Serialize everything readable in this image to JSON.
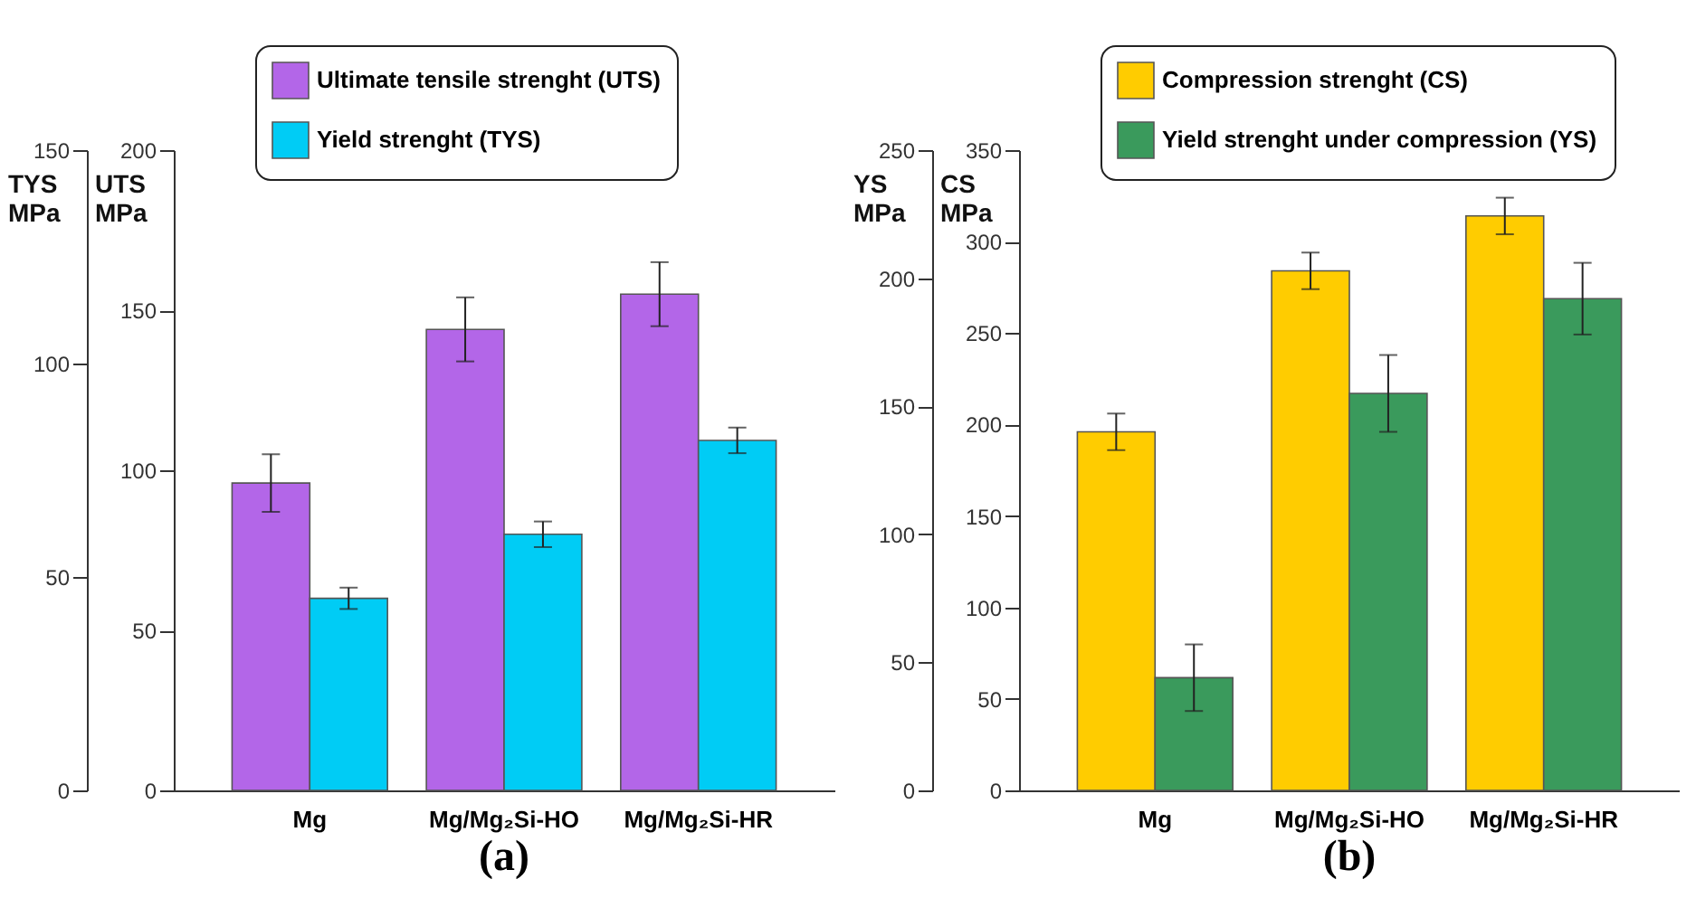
{
  "chart_data": [
    {
      "type": "bar",
      "categories": [
        "Mg",
        "Mg/Mg₂Si-HO",
        "Mg/Mg₂Si-HR"
      ],
      "ylabel": "UTS MPa",
      "y2label": "TYS MPa",
      "ylim": [
        0,
        200
      ],
      "yticks": [
        0,
        50,
        100,
        150,
        200
      ],
      "y2lim": [
        0,
        150
      ],
      "y2ticks": [
        0,
        50,
        100,
        150
      ],
      "legend": "top right",
      "annotations": [
        "(a)"
      ],
      "series": [
        {
          "name": "Ultimate tensile strenght (UTS)",
          "color": "#b366e8",
          "values": [
            96,
            144,
            155
          ],
          "errors": [
            9,
            10,
            10
          ]
        },
        {
          "name": "Yield strenght (TYS)",
          "color": "#00ccf5",
          "values": [
            45,
            60,
            82
          ],
          "errors": [
            2.5,
            3,
            3
          ],
          "axis": "y2"
        }
      ]
    },
    {
      "type": "bar",
      "categories": [
        "Mg",
        "Mg/Mg₂Si-HO",
        "Mg/Mg₂Si-HR"
      ],
      "ylabel": "CS MPa",
      "y2label": "YS MPa",
      "ylim": [
        0,
        350
      ],
      "yticks": [
        0,
        50,
        100,
        150,
        200,
        250,
        300,
        350
      ],
      "y2lim": [
        0,
        250
      ],
      "y2ticks": [
        0,
        50,
        100,
        150,
        200,
        250
      ],
      "legend": "top right",
      "annotations": [
        "(b)"
      ],
      "series": [
        {
          "name": "Compression strenght (CS)",
          "color": "#ffcc00",
          "values": [
            196,
            284,
            314
          ],
          "errors": [
            10,
            10,
            10
          ]
        },
        {
          "name": "Yield strenght under compression (YS)",
          "color": "#3a9a5c",
          "values": [
            44,
            155,
            192
          ],
          "errors": [
            13,
            15,
            14
          ],
          "axis": "y2"
        }
      ]
    }
  ]
}
